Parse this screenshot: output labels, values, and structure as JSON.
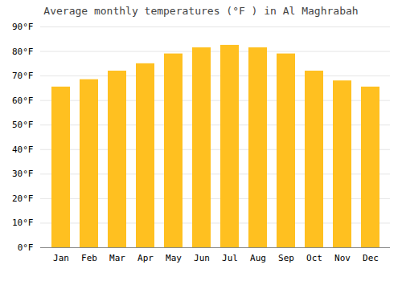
{
  "chart_data": {
    "type": "bar",
    "title": "Average monthly temperatures (°F ) in Al Maghrabah",
    "categories": [
      "Jan",
      "Feb",
      "Mar",
      "Apr",
      "May",
      "Jun",
      "Jul",
      "Aug",
      "Sep",
      "Oct",
      "Nov",
      "Dec"
    ],
    "values": [
      65.5,
      68.5,
      72,
      75,
      79,
      81.5,
      82.5,
      81.5,
      79,
      72,
      68,
      65.5
    ],
    "color": "#FFC020",
    "ylim": [
      0,
      90
    ],
    "yticks": [
      {
        "value": 0,
        "label": "0°F"
      },
      {
        "value": 10,
        "label": "10°F"
      },
      {
        "value": 20,
        "label": "20°F"
      },
      {
        "value": 30,
        "label": "30°F"
      },
      {
        "value": 40,
        "label": "40°F"
      },
      {
        "value": 50,
        "label": "50°F"
      },
      {
        "value": 60,
        "label": "60°F"
      },
      {
        "value": 70,
        "label": "70°F"
      },
      {
        "value": 80,
        "label": "80°F"
      },
      {
        "value": 90,
        "label": "90°F"
      }
    ],
    "grid": true
  }
}
